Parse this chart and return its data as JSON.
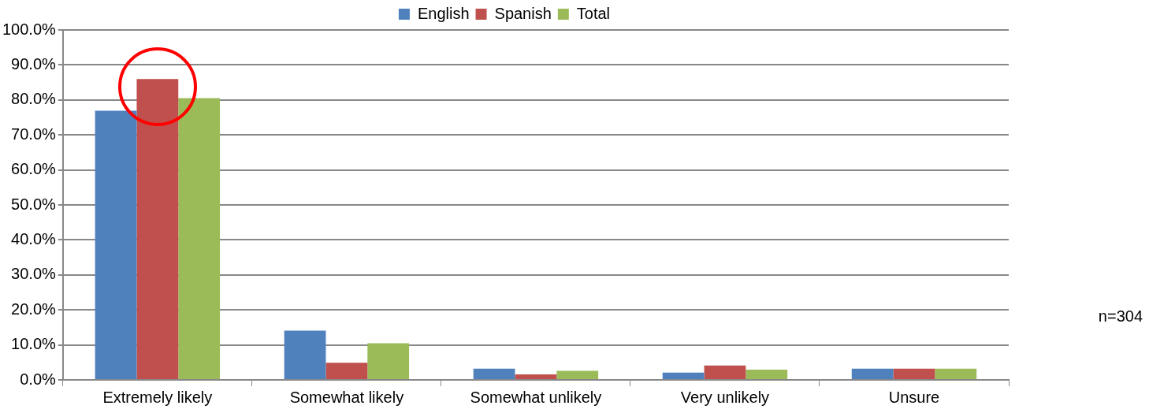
{
  "chart_data": {
    "type": "bar",
    "categories": [
      "Extremely likely",
      "Somewhat likely",
      "Somewhat unlikely",
      "Very unlikely",
      "Unsure"
    ],
    "series": [
      {
        "name": "English",
        "color": "#4f81bd",
        "values": [
          76.9,
          14.1,
          3.2,
          2.1,
          3.2
        ]
      },
      {
        "name": "Spanish",
        "color": "#c0504d",
        "values": [
          86.0,
          4.9,
          1.6,
          4.1,
          3.2
        ]
      },
      {
        "name": "Total",
        "color": "#9bbb59",
        "values": [
          80.5,
          10.5,
          2.6,
          2.9,
          3.2
        ]
      }
    ],
    "ylim": [
      0,
      100
    ],
    "yticks": [
      {
        "value": 0,
        "label": "0.0%"
      },
      {
        "value": 10,
        "label": "10.0%"
      },
      {
        "value": 20,
        "label": "20.0%"
      },
      {
        "value": 30,
        "label": "30.0%"
      },
      {
        "value": 40,
        "label": "40.0%"
      },
      {
        "value": 50,
        "label": "50.0%"
      },
      {
        "value": 60,
        "label": "60.0%"
      },
      {
        "value": 70,
        "label": "70.0%"
      },
      {
        "value": 80,
        "label": "80.0%"
      },
      {
        "value": 90,
        "label": "90.0%"
      },
      {
        "value": 100,
        "label": "100.0%"
      }
    ],
    "grid": "y",
    "legend": "top",
    "annotations": [
      "n=304"
    ]
  }
}
